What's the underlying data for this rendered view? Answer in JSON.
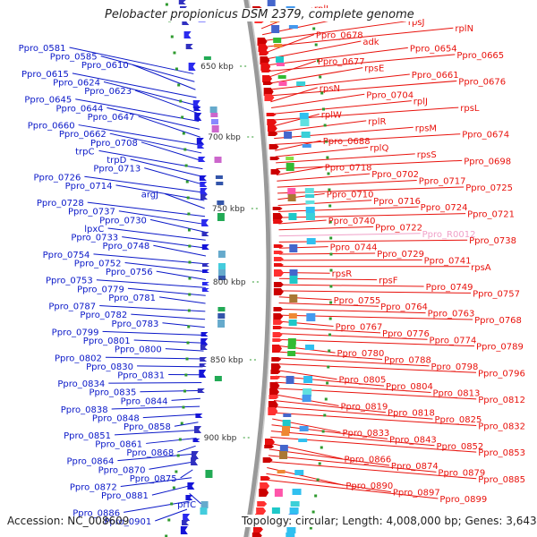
{
  "title": "Pelobacter propionicus DSM 2379, complete genome",
  "accession": "Accession: NC_008609",
  "summary": "Topology: circular; Length: 4,008,000 bp; Genes: 3,643",
  "colors": {
    "left_label": "#0a18c8",
    "right_label": "#e8120c",
    "rna_label": "#f0a0c8",
    "backbone": "#999999",
    "tick_dot": "#2e9a2e"
  },
  "scale_labels": [
    "650 kbp",
    "700 kbp",
    "750 kbp",
    "800 kbp",
    "850 kbp",
    "900 kbp"
  ],
  "left_labels": [
    "Ppro_0581",
    "Ppro_0585",
    "Ppro_0610",
    "Ppro_0615",
    "Ppro_0624",
    "Ppro_0623",
    "Ppro_0645",
    "Ppro_0644",
    "Ppro_0647",
    "Ppro_0660",
    "Ppro_0662",
    "Ppro_0708",
    "trpC",
    "trpD",
    "Ppro_0713",
    "Ppro_0726",
    "Ppro_0714",
    "argJ",
    "Ppro_0728",
    "Ppro_0737",
    "Ppro_0730",
    "lpxC",
    "Ppro_0733",
    "Ppro_0748",
    "Ppro_0754",
    "Ppro_0752",
    "Ppro_0756",
    "Ppro_0753",
    "Ppro_0779",
    "Ppro_0781",
    "Ppro_0787",
    "Ppro_0782",
    "Ppro_0783",
    "Ppro_0799",
    "Ppro_0801",
    "Ppro_0800",
    "Ppro_0802",
    "Ppro_0830",
    "Ppro_0831",
    "Ppro_0834",
    "Ppro_0835",
    "Ppro_0844",
    "Ppro_0838",
    "Ppro_0848",
    "Ppro_0858",
    "Ppro_0851",
    "Ppro_0861",
    "Ppro_0868",
    "Ppro_0864",
    "Ppro_0870",
    "Ppro_0875",
    "Ppro_0872",
    "Ppro_0881",
    "prfC",
    "Ppro_0886",
    "Ppro_0901"
  ],
  "right_labels": [
    "rplL",
    "rplC",
    "rpsJ",
    "rplN",
    "Ppro_0678",
    "adk",
    "Ppro_0654",
    "Ppro_0665",
    "Ppro_0677",
    "rpsE",
    "Ppro_0661",
    "Ppro_0676",
    "rpsN",
    "Ppro_0704",
    "rplJ",
    "rpsL",
    "rplW",
    "rplR",
    "rpsM",
    "Ppro_0674",
    "Ppro_0688",
    "rplQ",
    "rpsS",
    "Ppro_0698",
    "Ppro_0718",
    "Ppro_0702",
    "Ppro_0717",
    "Ppro_0725",
    "Ppro_0710",
    "Ppro_0716",
    "Ppro_0724",
    "Ppro_0721",
    "Ppro_0740",
    "Ppro_0722",
    "Ppro_R0012",
    "Ppro_0738",
    "Ppro_0744",
    "Ppro_0729",
    "Ppro_0741",
    "rpsA",
    "rpsR",
    "rpsF",
    "Ppro_0749",
    "Ppro_0757",
    "Ppro_0755",
    "Ppro_0764",
    "Ppro_0763",
    "Ppro_0768",
    "Ppro_0767",
    "Ppro_0776",
    "Ppro_0774",
    "Ppro_0789",
    "Ppro_0780",
    "Ppro_0788",
    "Ppro_0798",
    "Ppro_0796",
    "Ppro_0805",
    "Ppro_0804",
    "Ppro_0813",
    "Ppro_0812",
    "Ppro_0819",
    "Ppro_0818",
    "Ppro_0825",
    "Ppro_0832",
    "Ppro_0833",
    "Ppro_0843",
    "Ppro_0852",
    "Ppro_0853",
    "Ppro_0866",
    "Ppro_0874",
    "Ppro_0879",
    "Ppro_0885",
    "Ppro_0890",
    "Ppro_0897",
    "Ppro_0899"
  ]
}
